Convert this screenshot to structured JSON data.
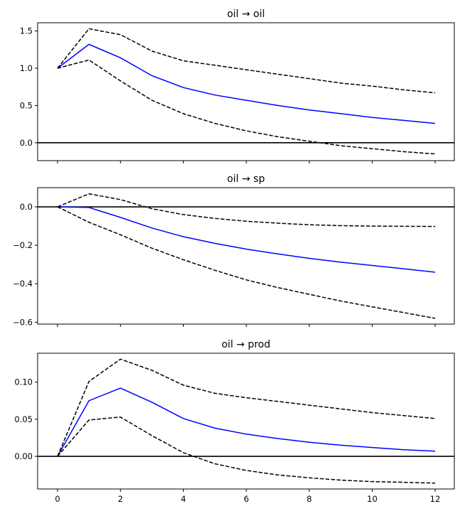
{
  "chart_data": [
    {
      "type": "line",
      "title": "oil → oil",
      "x": [
        0,
        1,
        2,
        3,
        4,
        5,
        6,
        7,
        8,
        9,
        10,
        11,
        12
      ],
      "ylim": [
        -0.24,
        1.61
      ],
      "yticks": [
        0.0,
        0.5,
        1.0,
        1.5
      ],
      "ytick_labels": [
        "0.0",
        "0.5",
        "1.0",
        "1.5"
      ],
      "show_xtick_labels": false,
      "series": [
        {
          "role": "estimate",
          "color": "#0000ff",
          "style": "solid",
          "values": [
            1.0,
            1.32,
            1.14,
            0.9,
            0.74,
            0.64,
            0.57,
            0.5,
            0.44,
            0.39,
            0.34,
            0.3,
            0.26
          ]
        },
        {
          "role": "upper",
          "color": "#000000",
          "style": "dashed",
          "values": [
            1.0,
            1.53,
            1.45,
            1.23,
            1.1,
            1.04,
            0.98,
            0.92,
            0.86,
            0.8,
            0.76,
            0.71,
            0.67
          ]
        },
        {
          "role": "lower",
          "color": "#000000",
          "style": "dashed",
          "values": [
            1.0,
            1.11,
            0.83,
            0.57,
            0.39,
            0.26,
            0.16,
            0.08,
            0.02,
            -0.04,
            -0.08,
            -0.12,
            -0.15
          ]
        }
      ]
    },
    {
      "type": "line",
      "title": "oil → sp",
      "x": [
        0,
        1,
        2,
        3,
        4,
        5,
        6,
        7,
        8,
        9,
        10,
        11,
        12
      ],
      "ylim": [
        -0.61,
        0.1
      ],
      "yticks": [
        -0.6,
        -0.4,
        -0.2,
        0.0
      ],
      "ytick_labels": [
        "−0.6",
        "−0.4",
        "−0.2",
        "0.0"
      ],
      "show_xtick_labels": false,
      "series": [
        {
          "role": "estimate",
          "color": "#0000ff",
          "style": "solid",
          "values": [
            0,
            -0.003,
            -0.055,
            -0.11,
            -0.155,
            -0.19,
            -0.22,
            -0.245,
            -0.268,
            -0.288,
            -0.305,
            -0.322,
            -0.34
          ]
        },
        {
          "role": "upper",
          "color": "#000000",
          "style": "dashed",
          "values": [
            0,
            0.068,
            0.038,
            -0.01,
            -0.04,
            -0.06,
            -0.075,
            -0.085,
            -0.093,
            -0.098,
            -0.1,
            -0.101,
            -0.102
          ]
        },
        {
          "role": "lower",
          "color": "#000000",
          "style": "dashed",
          "values": [
            0,
            -0.08,
            -0.145,
            -0.215,
            -0.275,
            -0.33,
            -0.38,
            -0.42,
            -0.455,
            -0.49,
            -0.52,
            -0.55,
            -0.58
          ]
        }
      ]
    },
    {
      "type": "line",
      "title": "oil → prod",
      "x": [
        0,
        1,
        2,
        3,
        4,
        5,
        6,
        7,
        8,
        9,
        10,
        11,
        12
      ],
      "ylim": [
        -0.044,
        0.139
      ],
      "yticks": [
        0.0,
        0.05,
        0.1
      ],
      "ytick_labels": [
        "0.00",
        "0.05",
        "0.10"
      ],
      "show_xtick_labels": true,
      "xticks": [
        0,
        2,
        4,
        6,
        8,
        10,
        12
      ],
      "xtick_labels": [
        "0",
        "2",
        "4",
        "6",
        "8",
        "10",
        "12"
      ],
      "series": [
        {
          "role": "estimate",
          "color": "#0000ff",
          "style": "solid",
          "values": [
            0,
            0.075,
            0.092,
            0.073,
            0.051,
            0.038,
            0.03,
            0.024,
            0.019,
            0.015,
            0.012,
            0.009,
            0.007
          ]
        },
        {
          "role": "upper",
          "color": "#000000",
          "style": "dashed",
          "values": [
            0,
            0.101,
            0.131,
            0.116,
            0.096,
            0.085,
            0.079,
            0.074,
            0.069,
            0.064,
            0.059,
            0.055,
            0.051
          ]
        },
        {
          "role": "lower",
          "color": "#000000",
          "style": "dashed",
          "values": [
            0,
            0.049,
            0.053,
            0.028,
            0.005,
            -0.01,
            -0.019,
            -0.025,
            -0.029,
            -0.032,
            -0.034,
            -0.035,
            -0.036
          ]
        }
      ]
    }
  ]
}
